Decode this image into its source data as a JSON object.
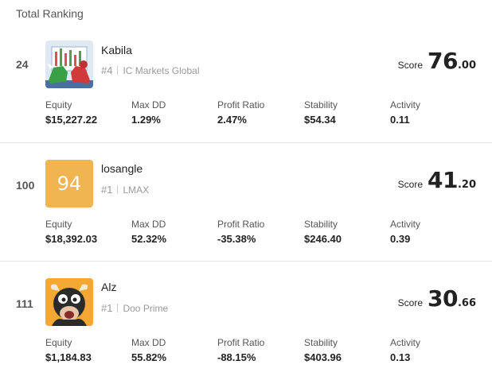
{
  "header": {
    "title": "Total Ranking"
  },
  "stat_labels": {
    "equity": "Equity",
    "max_dd": "Max DD",
    "profit_ratio": "Profit Ratio",
    "stability": "Stability",
    "activity": "Activity"
  },
  "rows": [
    {
      "rank": "24",
      "name": "Kabila",
      "position": "#4",
      "broker": "IC Markets Global",
      "avatar": {
        "type": "image",
        "icon": "bull-bear-icon"
      },
      "score_label": "Score",
      "score_int": "76",
      "score_dec": ".00",
      "equity": "$15,227.22",
      "max_dd": "1.29%",
      "profit_ratio": "2.47%",
      "stability": "$54.34",
      "activity": "0.11"
    },
    {
      "rank": "100",
      "name": "losangle",
      "position": "#1",
      "broker": "LMAX",
      "avatar": {
        "type": "number",
        "text": "94",
        "color": "#f0b450"
      },
      "score_label": "Score",
      "score_int": "41",
      "score_dec": ".20",
      "equity": "$18,392.03",
      "max_dd": "52.32%",
      "profit_ratio": "-35.38%",
      "stability": "$246.40",
      "activity": "0.39"
    },
    {
      "rank": "111",
      "name": "Alz",
      "position": "#1",
      "broker": "Doo Prime",
      "avatar": {
        "type": "image",
        "icon": "cartoon-bull-icon"
      },
      "score_label": "Score",
      "score_int": "30",
      "score_dec": ".66",
      "equity": "$1,184.83",
      "max_dd": "55.82%",
      "profit_ratio": "-88.15%",
      "stability": "$403.96",
      "activity": "0.13"
    }
  ]
}
